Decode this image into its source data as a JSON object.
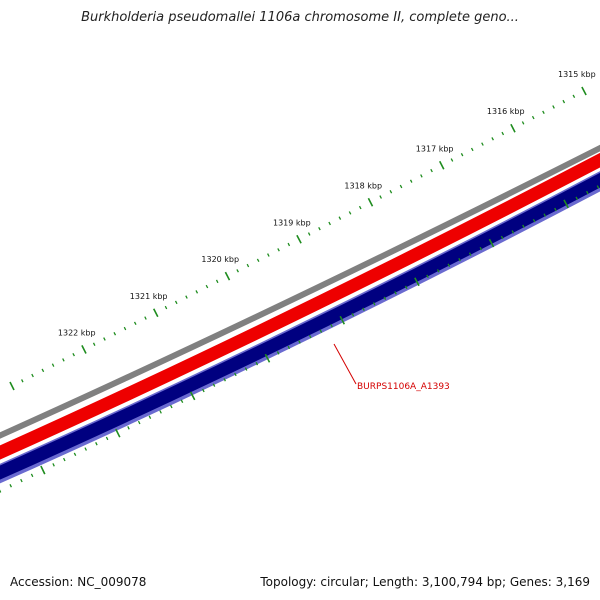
{
  "title": "Burkholderia pseudomallei 1106a chromosome II, complete geno...",
  "footer": {
    "accession": "Accession: NC_009078",
    "summary": "Topology: circular; Length: 3,100,794 bp; Genes: 3,169"
  },
  "ruler": {
    "labels": [
      "1315 kbp",
      "1316 kbp",
      "1317 kbp",
      "1318 kbp",
      "1319 kbp",
      "1320 kbp",
      "1321 kbp",
      "1322 kbp"
    ]
  },
  "gene": {
    "label": "BURPS1106A_A1393"
  },
  "colors": {
    "tick": "#1e8c1e",
    "backbone": "#808080",
    "forward": "#ee0000",
    "reverse": "#000080",
    "reverse_edge": "#6a6ad0",
    "label": "#d40000"
  }
}
